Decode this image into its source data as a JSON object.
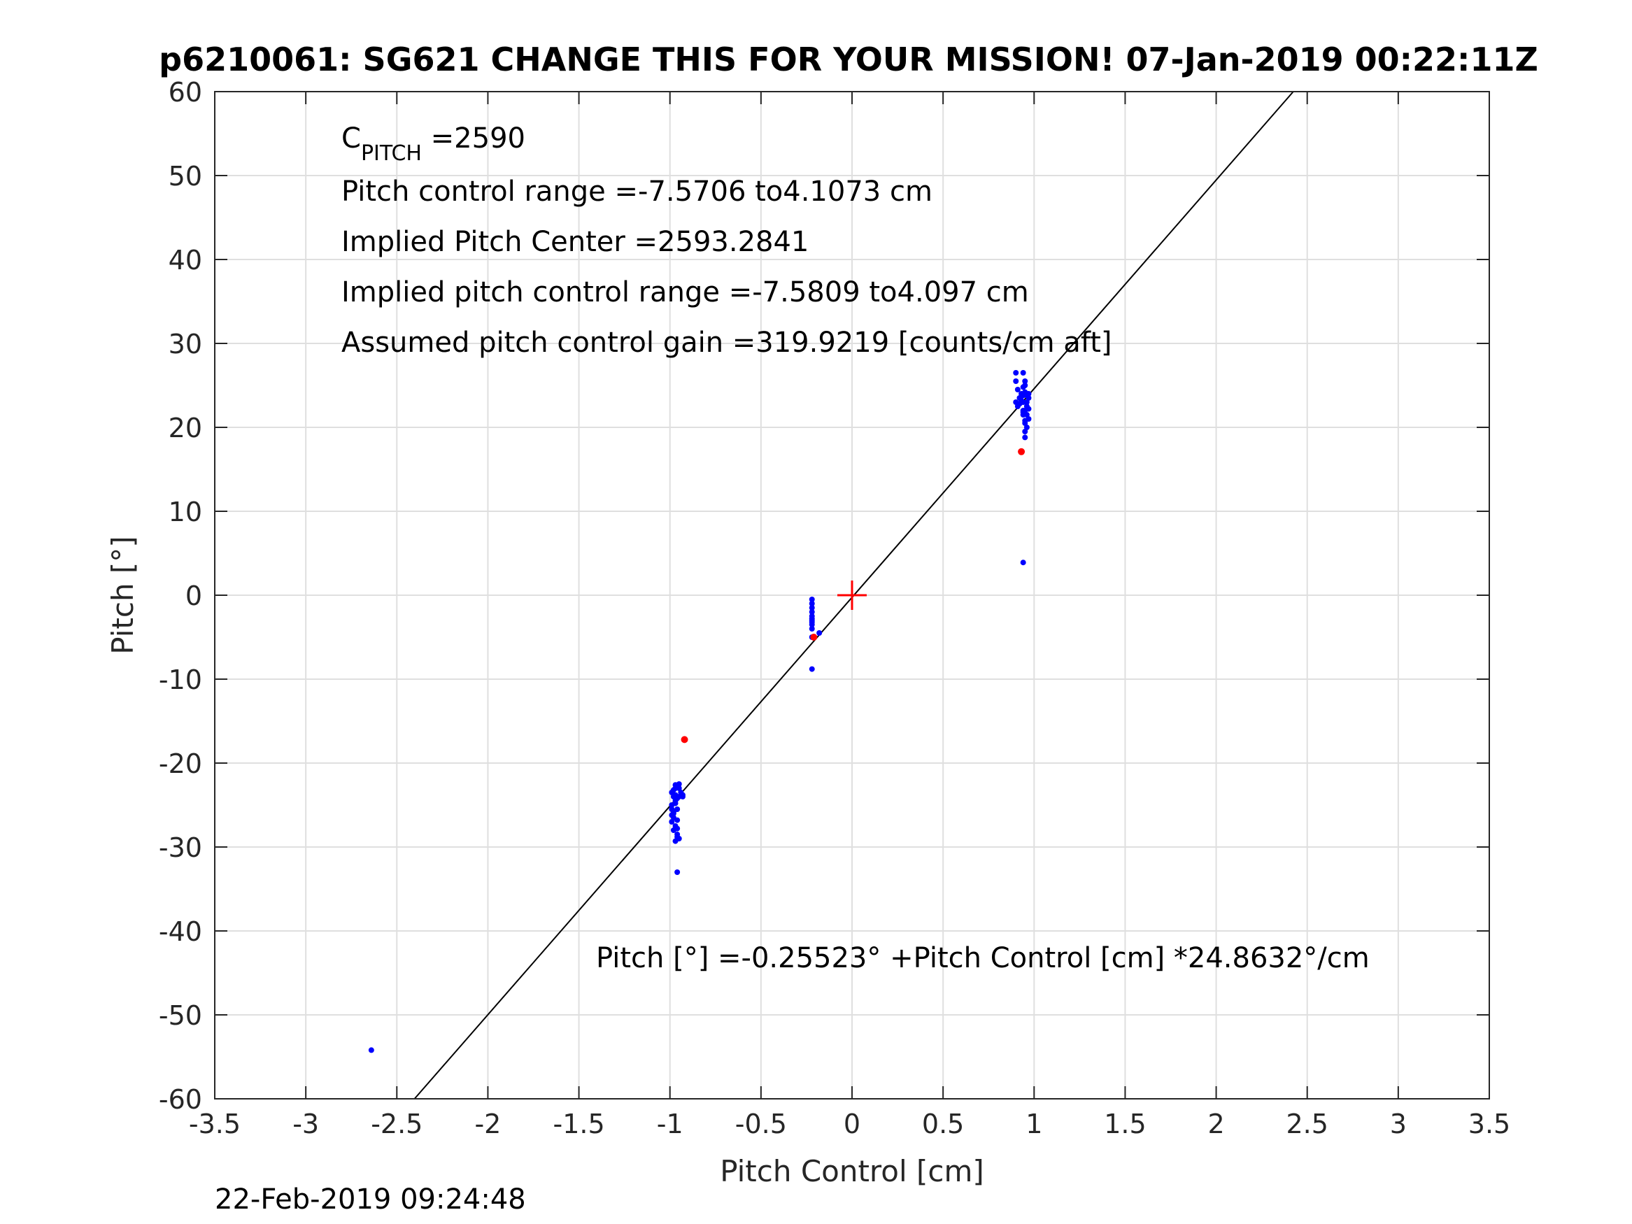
{
  "chart_data": {
    "type": "scatter",
    "title": "p6210061: SG621 CHANGE THIS FOR YOUR MISSION! 07-Jan-2019 00:22:11Z",
    "xlabel": "Pitch Control [cm]",
    "ylabel": "Pitch [°]",
    "xlim": [
      -3.5,
      3.5
    ],
    "ylim": [
      -60,
      60
    ],
    "x_ticks": [
      -3.5,
      -3,
      -2.5,
      -2,
      -1.5,
      -1,
      -0.5,
      0,
      0.5,
      1,
      1.5,
      2,
      2.5,
      3,
      3.5
    ],
    "x_tick_labels": [
      "-3.5",
      "-3",
      "-2.5",
      "-2",
      "-1.5",
      "-1",
      "-0.5",
      "0",
      "0.5",
      "1",
      "1.5",
      "2",
      "2.5",
      "3",
      "3.5"
    ],
    "y_ticks": [
      -60,
      -50,
      -40,
      -30,
      -20,
      -10,
      0,
      10,
      20,
      30,
      40,
      50,
      60
    ],
    "y_tick_labels": [
      "-60",
      "-50",
      "-40",
      "-30",
      "-20",
      "-10",
      "0",
      "10",
      "20",
      "30",
      "40",
      "50",
      "60"
    ],
    "grid": true,
    "colors": {
      "good": "#0000ff",
      "bad": "#ff0000",
      "fit": "#000000",
      "center": "#ff0000"
    },
    "series": [
      {
        "color": "blue",
        "x": [
          -0.99,
          -0.98,
          -0.99,
          -0.97,
          -0.98,
          -0.96,
          -0.99,
          -0.97,
          -0.98,
          -0.96,
          -0.95,
          -0.94,
          -0.93,
          -0.95,
          -0.97,
          -0.98,
          -0.99,
          -0.96,
          -0.95,
          -0.97,
          -0.98,
          -0.96,
          -0.97,
          -0.96,
          -0.97,
          -0.96,
          -0.98,
          -0.99,
          -0.97,
          -0.96,
          -0.95,
          -0.93,
          -0.96,
          -0.22,
          -0.22,
          -0.22,
          -0.22,
          -0.22,
          -0.22,
          -0.22,
          -0.22,
          -0.22,
          -0.22,
          -0.22,
          -0.18,
          -0.22,
          0.9,
          0.9,
          0.91,
          0.9,
          0.91,
          0.92,
          0.93,
          0.94,
          0.95,
          0.96,
          0.97,
          0.94,
          0.95,
          0.96,
          0.97,
          0.95,
          0.94,
          0.96,
          0.97,
          0.95,
          0.96,
          0.94,
          0.95,
          0.92,
          0.93,
          0.94,
          0.94,
          0.96,
          0.95,
          0.94,
          0.95,
          0.97,
          0.96,
          0.95,
          0.94,
          -2.64
        ],
        "y": [
          -23.5,
          -24.0,
          -25.0,
          -23.0,
          -26.0,
          -22.8,
          -27.0,
          -24.5,
          -28.0,
          -25.5,
          -24.0,
          -23.5,
          -24.0,
          -22.5,
          -27.5,
          -26.5,
          -25.5,
          -28.5,
          -29.0,
          -24.8,
          -23.2,
          -26.8,
          -23.8,
          -27.8,
          -29.3,
          -24.2,
          -25.8,
          -26.2,
          -22.6,
          -28.8,
          -23.0,
          -23.8,
          -33.0,
          -0.5,
          -1.0,
          -1.5,
          -2.0,
          -2.5,
          -3.0,
          -3.5,
          -4.0,
          -3.2,
          -2.8,
          -5.0,
          -4.5,
          -8.8,
          26.5,
          25.5,
          24.5,
          23.0,
          22.5,
          23.5,
          24.0,
          23.0,
          22.0,
          24.0,
          23.5,
          21.5,
          20.5,
          22.5,
          21.0,
          25.0,
          26.5,
          23.8,
          22.2,
          19.5,
          20.0,
          21.8,
          18.8,
          22.8,
          23.2,
          23.8,
          22.0,
          23.0,
          24.2,
          24.8,
          25.5,
          24.0,
          21.5,
          20.8,
          3.9,
          -54.2
        ]
      },
      {
        "color": "red",
        "x": [
          -0.92,
          0.93,
          -0.21
        ],
        "y": [
          -17.2,
          17.1,
          -5.0
        ]
      }
    ],
    "fit_line": {
      "intercept": -0.25523,
      "slope": 24.8632
    },
    "center_marker": {
      "x": 0,
      "y": 0
    },
    "annotations": [
      "Pitch control range =-7.5706 to4.1073 cm",
      "Implied Pitch Center =2593.2841",
      "Implied pitch control range =-7.5809 to4.097 cm",
      "Assumed pitch control gain =319.9219 [counts/cm aft]"
    ],
    "cpitch_main": "C",
    "cpitch_sub": "PITCH",
    "cpitch_value": " =2590",
    "fit_equation": "Pitch [°] =-0.25523° +Pitch Control [cm] *24.8632°/cm"
  },
  "timestamp": "22-Feb-2019 09:24:48"
}
